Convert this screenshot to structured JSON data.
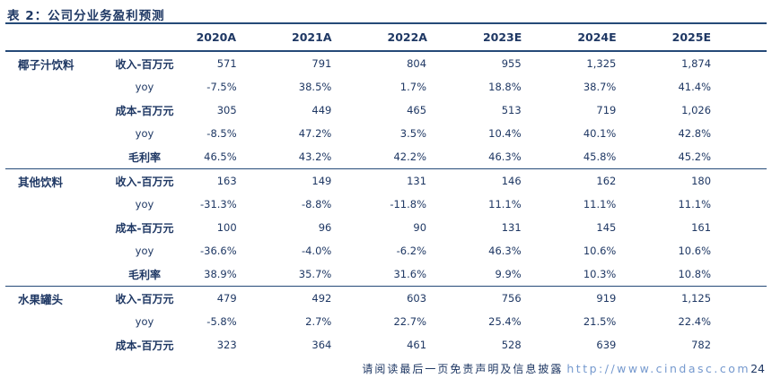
{
  "title": "表 2：公司分业务盈利预测",
  "table": {
    "year_headers": [
      "2020A",
      "2021A",
      "2022A",
      "2023E",
      "2024E",
      "2025E"
    ],
    "groups": [
      {
        "name": "椰子汁饮料",
        "rows": [
          {
            "metric": "收入-百万元",
            "bold": true,
            "values": [
              "571",
              "791",
              "804",
              "955",
              "1,325",
              "1,874"
            ]
          },
          {
            "metric": "yoy",
            "bold": false,
            "values": [
              "-7.5%",
              "38.5%",
              "1.7%",
              "18.8%",
              "38.7%",
              "41.4%"
            ]
          },
          {
            "metric": "成本-百万元",
            "bold": true,
            "values": [
              "305",
              "449",
              "465",
              "513",
              "719",
              "1,026"
            ]
          },
          {
            "metric": "yoy",
            "bold": false,
            "values": [
              "-8.5%",
              "47.2%",
              "3.5%",
              "10.4%",
              "40.1%",
              "42.8%"
            ]
          },
          {
            "metric": "毛利率",
            "bold": true,
            "values": [
              "46.5%",
              "43.2%",
              "42.2%",
              "46.3%",
              "45.8%",
              "45.2%"
            ]
          }
        ]
      },
      {
        "name": "其他饮料",
        "rows": [
          {
            "metric": "收入-百万元",
            "bold": true,
            "values": [
              "163",
              "149",
              "131",
              "146",
              "162",
              "180"
            ]
          },
          {
            "metric": "yoy",
            "bold": false,
            "values": [
              "-31.3%",
              "-8.8%",
              "-11.8%",
              "11.1%",
              "11.1%",
              "11.1%"
            ]
          },
          {
            "metric": "成本-百万元",
            "bold": true,
            "values": [
              "100",
              "96",
              "90",
              "131",
              "145",
              "161"
            ]
          },
          {
            "metric": "yoy",
            "bold": false,
            "values": [
              "-36.6%",
              "-4.0%",
              "-6.2%",
              "46.3%",
              "10.6%",
              "10.6%"
            ]
          },
          {
            "metric": "毛利率",
            "bold": true,
            "values": [
              "38.9%",
              "35.7%",
              "31.6%",
              "9.9%",
              "10.3%",
              "10.8%"
            ]
          }
        ]
      },
      {
        "name": "水果罐头",
        "rows": [
          {
            "metric": "收入-百万元",
            "bold": true,
            "values": [
              "479",
              "492",
              "603",
              "756",
              "919",
              "1,125"
            ]
          },
          {
            "metric": "yoy",
            "bold": false,
            "values": [
              "-5.8%",
              "2.7%",
              "22.7%",
              "25.4%",
              "21.5%",
              "22.4%"
            ]
          },
          {
            "metric": "成本-百万元",
            "bold": true,
            "values": [
              "323",
              "364",
              "461",
              "528",
              "639",
              "782"
            ]
          }
        ]
      }
    ]
  },
  "footer": {
    "disclaimer": "请阅读最后一页免责声明及信息披露",
    "url": "http://www.cindasc.com",
    "page_number": "24"
  },
  "colors": {
    "text": "#1F3864",
    "line": "#254A78",
    "url": "#7599CE"
  }
}
